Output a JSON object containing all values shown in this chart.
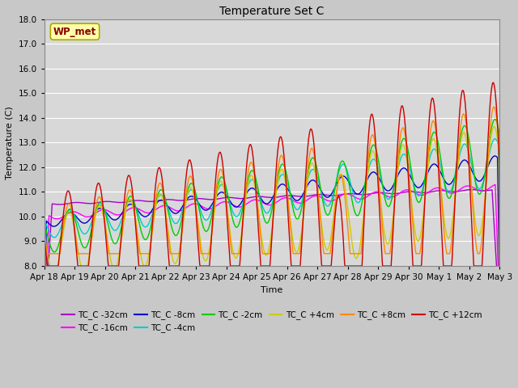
{
  "title": "Temperature Set C",
  "xlabel": "Time",
  "ylabel": "Temperature (C)",
  "ylim": [
    8.0,
    18.0
  ],
  "yticks": [
    8.0,
    9.0,
    10.0,
    11.0,
    12.0,
    13.0,
    14.0,
    15.0,
    16.0,
    17.0,
    18.0
  ],
  "bg_color": "#c8c8c8",
  "plot_bg_color": "#d8d8d8",
  "legend_label": "WP_met",
  "legend_text_color": "#880000",
  "legend_box_color": "#ffffaa",
  "legend_box_edge": "#aaaa00",
  "series": [
    {
      "label": "TC_C -32cm",
      "color": "#aa00cc"
    },
    {
      "label": "TC_C -16cm",
      "color": "#ff00ff"
    },
    {
      "label": "TC_C -8cm",
      "color": "#0000cc"
    },
    {
      "label": "TC_C -4cm",
      "color": "#00cccc"
    },
    {
      "label": "TC_C -2cm",
      "color": "#00cc00"
    },
    {
      "label": "TC_C +4cm",
      "color": "#cccc00"
    },
    {
      "label": "TC_C +8cm",
      "color": "#ff8800"
    },
    {
      "label": "TC_C +12cm",
      "color": "#cc0000"
    }
  ],
  "x_tick_labels": [
    "Apr 18",
    "Apr 19",
    "Apr 20",
    "Apr 21",
    "Apr 22",
    "Apr 23",
    "Apr 24",
    "Apr 25",
    "Apr 26",
    "Apr 27",
    "Apr 28",
    "Apr 29",
    "Apr 30",
    "May 1",
    "May 2",
    "May 3"
  ],
  "figsize": [
    6.4,
    4.8
  ],
  "dpi": 100
}
